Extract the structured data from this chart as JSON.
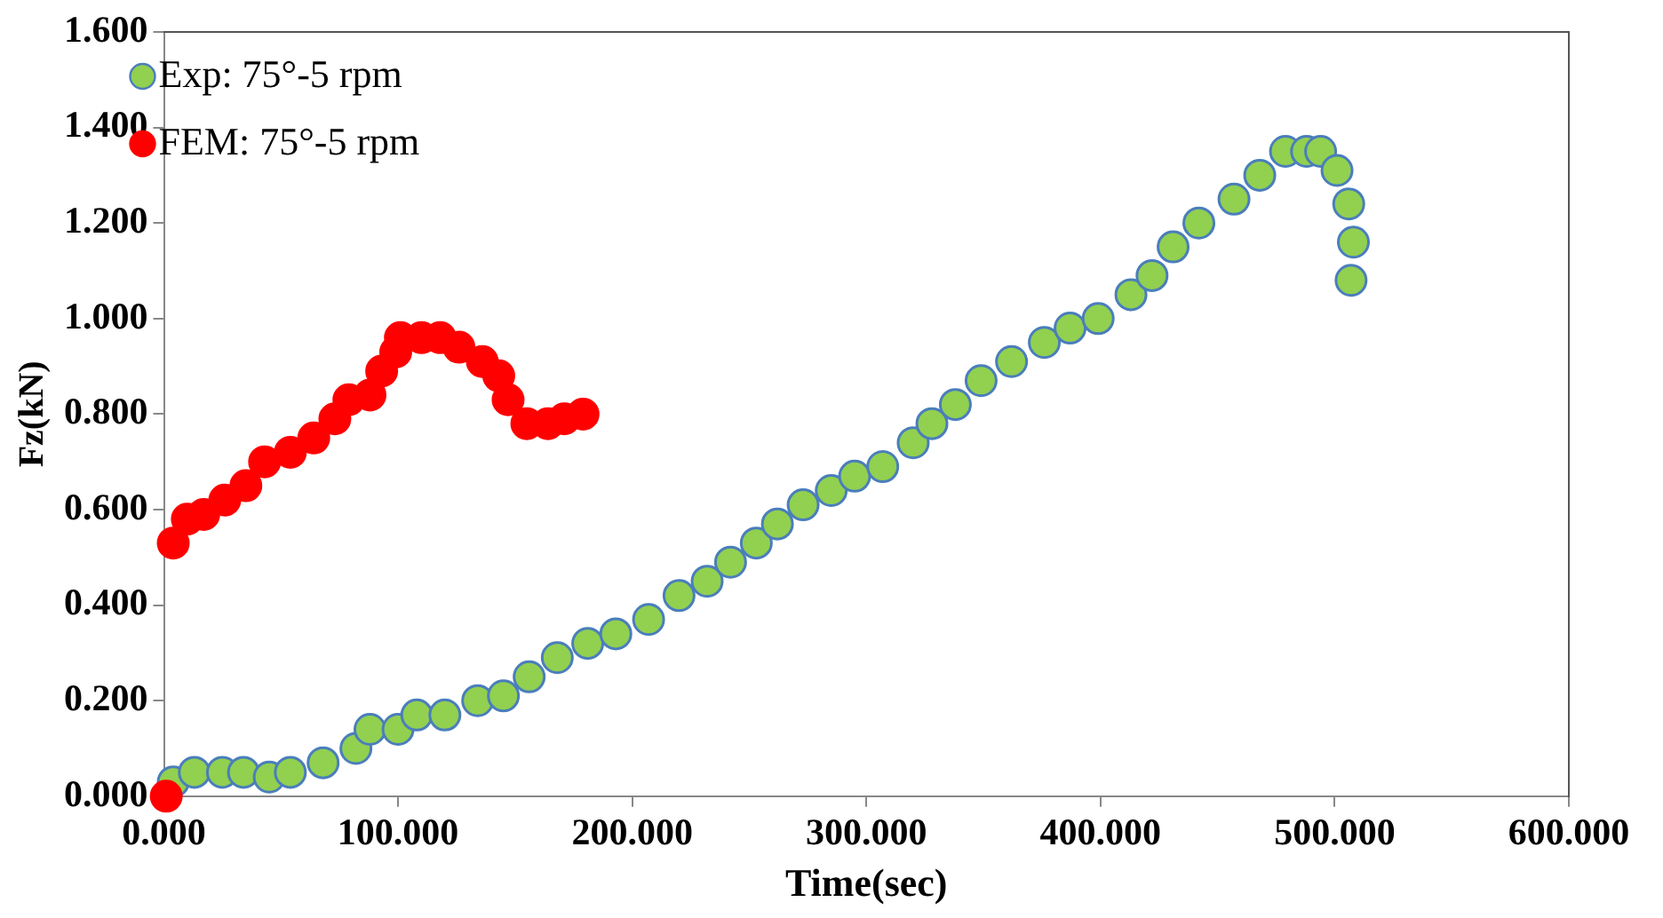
{
  "chart_data": {
    "type": "scatter",
    "xlabel": "Time(sec)",
    "ylabel": "Fz(kN)",
    "legend": "top left",
    "marker": "circle",
    "grid": false,
    "xlim": [
      0,
      600
    ],
    "xticks": [
      {
        "value": 0,
        "label": "0.000"
      },
      {
        "value": 100,
        "label": "100.000"
      },
      {
        "value": 200,
        "label": "200.000"
      },
      {
        "value": 300,
        "label": "300.000"
      },
      {
        "value": 400,
        "label": "400.000"
      },
      {
        "value": 500,
        "label": "500.000"
      },
      {
        "value": 600,
        "label": "600.000"
      }
    ],
    "ylim": [
      0,
      1.6
    ],
    "yticks": [
      {
        "value": 0,
        "label": "0.000"
      },
      {
        "value": 0.2,
        "label": "0.200"
      },
      {
        "value": 0.4,
        "label": "0.400"
      },
      {
        "value": 0.6,
        "label": "0.600"
      },
      {
        "value": 0.8,
        "label": "0.800"
      },
      {
        "value": 1,
        "label": "1.000"
      },
      {
        "value": 1.2,
        "label": "1.200"
      },
      {
        "value": 1.4,
        "label": "1.400"
      },
      {
        "value": 1.6,
        "label": "1.600"
      }
    ],
    "series": [
      {
        "name": "Exp: 75°-5 rpm",
        "color": "#92d050",
        "x": [
          4,
          13,
          25,
          34,
          45,
          54,
          68,
          82,
          88,
          100,
          108,
          120,
          134,
          145,
          156,
          168,
          181,
          193,
          207,
          220,
          232,
          242,
          253,
          262,
          273,
          285,
          295,
          307,
          320,
          328,
          338,
          349,
          362,
          376,
          387,
          399,
          413,
          422,
          431,
          442,
          457,
          468,
          479,
          488,
          494,
          501,
          506,
          508,
          507
        ],
        "values": [
          0.03,
          0.05,
          0.05,
          0.05,
          0.04,
          0.05,
          0.07,
          0.1,
          0.14,
          0.14,
          0.17,
          0.17,
          0.2,
          0.21,
          0.25,
          0.29,
          0.32,
          0.34,
          0.37,
          0.42,
          0.45,
          0.49,
          0.53,
          0.57,
          0.61,
          0.64,
          0.67,
          0.69,
          0.74,
          0.78,
          0.82,
          0.87,
          0.91,
          0.95,
          0.98,
          1.0,
          1.05,
          1.09,
          1.15,
          1.2,
          1.25,
          1.3,
          1.35,
          1.35,
          1.35,
          1.31,
          1.24,
          1.16,
          1.08
        ]
      },
      {
        "name": "FEM: 75°-5 rpm",
        "color": "#ff0000",
        "x": [
          1,
          4,
          10,
          17,
          26,
          35,
          43,
          54,
          64,
          73,
          79,
          88,
          93,
          99,
          101,
          110,
          118,
          126,
          136,
          143,
          147,
          155,
          164,
          171,
          179
        ],
        "values": [
          0,
          0.53,
          0.58,
          0.59,
          0.62,
          0.65,
          0.7,
          0.72,
          0.75,
          0.79,
          0.83,
          0.84,
          0.89,
          0.93,
          0.96,
          0.96,
          0.96,
          0.94,
          0.91,
          0.88,
          0.83,
          0.78,
          0.78,
          0.79,
          0.8
        ]
      }
    ]
  }
}
